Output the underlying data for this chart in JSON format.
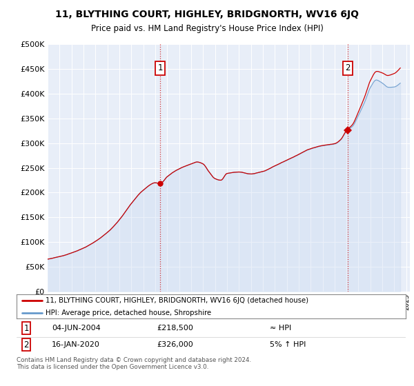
{
  "title": "11, BLYTHING COURT, HIGHLEY, BRIDGNORTH, WV16 6JQ",
  "subtitle": "Price paid vs. HM Land Registry's House Price Index (HPI)",
  "red_line_color": "#cc0000",
  "blue_line_color": "#6699cc",
  "blue_fill_color": "#ddeeff",
  "background_color": "#e8eef8",
  "grid_color": "#ffffff",
  "marker_box_color": "#cc0000",
  "legend_label1": "11, BLYTHING COURT, HIGHLEY, BRIDGNORTH, WV16 6JQ (detached house)",
  "legend_label2": "HPI: Average price, detached house, Shropshire",
  "transaction1_display": "04-JUN-2004",
  "transaction1_price_str": "£218,500",
  "transaction1_hpi": "≈ HPI",
  "transaction2_display": "16-JAN-2020",
  "transaction2_price_str": "£326,000",
  "transaction2_hpi": "5% ↑ HPI",
  "footnote": "Contains HM Land Registry data © Crown copyright and database right 2024.\nThis data is licensed under the Open Government Licence v3.0."
}
